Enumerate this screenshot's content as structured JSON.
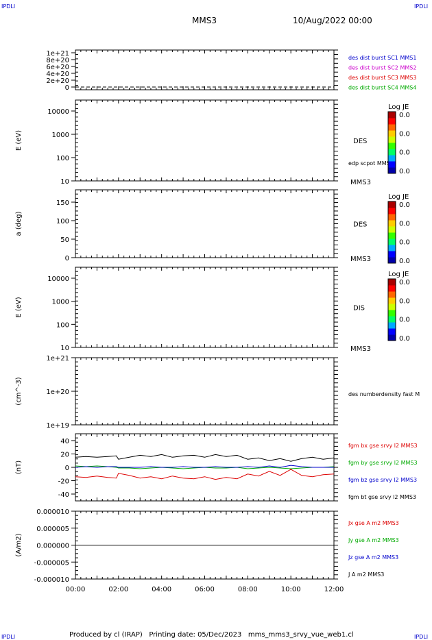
{
  "corner_label": "IPDLI",
  "header": {
    "spacecraft": "MMS3",
    "date": "10/Aug/2022 00:00"
  },
  "footer": "Produced by cl (IRAP)   Printing date: 05/Dec/2023   mms_mms3_srvy_vue_web1.cl",
  "x_axis": {
    "ticks": [
      "00:00",
      "02:00",
      "04:00",
      "06:00",
      "08:00",
      "10:00",
      "12:00"
    ]
  },
  "colorbar": {
    "title": "Log JE",
    "values": [
      "0.0",
      "0.0",
      "0.0",
      "0.0"
    ]
  },
  "colors": {
    "black": "#000000",
    "blue": "#0000cc",
    "magenta": "#cc00cc",
    "red": "#dd0000",
    "green": "#00aa00"
  },
  "chart_data": [
    {
      "type": "line",
      "ylabel": "",
      "yticks": [
        "1e+21",
        "8e+20",
        "6e+20",
        "4e+20",
        "2e+20",
        "0"
      ],
      "ylim": [
        0,
        1e+21
      ],
      "series": [
        {
          "name": "des dist burst SC1 MMS1",
          "color": "#0000cc"
        },
        {
          "name": "des dist burst SC2 MMS2",
          "color": "#cc00cc"
        },
        {
          "name": "des dist burst SC3 MMS3",
          "color": "#dd0000"
        },
        {
          "name": "des dist burst SC4 MMS4",
          "color": "#00aa00"
        }
      ]
    },
    {
      "type": "heatmap",
      "ylabel": "E (eV)",
      "scale": "log",
      "yticks": [
        "10000",
        "1000",
        "100",
        "10"
      ],
      "ylim": [
        10,
        15000
      ],
      "species": "DES",
      "spacecraft": "MMS3",
      "overlay": "edp scpot MMS3"
    },
    {
      "type": "heatmap",
      "ylabel": "a (deg)",
      "yticks": [
        "150",
        "100",
        "50",
        "0"
      ],
      "ylim": [
        0,
        180
      ],
      "species": "DES",
      "spacecraft": "MMS3"
    },
    {
      "type": "heatmap",
      "ylabel": "E (eV)",
      "scale": "log",
      "yticks": [
        "10000",
        "1000",
        "100",
        "10"
      ],
      "ylim": [
        10,
        15000
      ],
      "species": "DIS",
      "spacecraft": "MMS3"
    },
    {
      "type": "line",
      "ylabel": "(cm^-3)",
      "scale": "log",
      "yticks": [
        "1e+21",
        "1e+20",
        "1e+19"
      ],
      "ylim": [
        1e+19,
        1e+21
      ],
      "series": [
        {
          "name": "des numberdensity fast M",
          "color": "#000000"
        }
      ]
    },
    {
      "type": "line",
      "ylabel": "(nT)",
      "yticks": [
        "40",
        "20",
        "0",
        "-20",
        "-40"
      ],
      "ylim": [
        -50,
        50
      ],
      "x": [
        0,
        0.5,
        1,
        1.5,
        1.9,
        2.0,
        2.5,
        3,
        3.5,
        4,
        4.5,
        5,
        5.5,
        6,
        6.5,
        7,
        7.5,
        8,
        8.5,
        9,
        9.5,
        10,
        10.5,
        11,
        11.5,
        12
      ],
      "series": [
        {
          "name": "fgm bx gse srvy l2 MMS3",
          "color": "#dd0000",
          "values": [
            -14,
            -15,
            -13,
            -15,
            -16,
            -9,
            -12,
            -16,
            -14,
            -17,
            -13,
            -16,
            -17,
            -14,
            -18,
            -15,
            -17,
            -10,
            -13,
            -6,
            -12,
            -3,
            -12,
            -14,
            -11,
            -10
          ]
        },
        {
          "name": "fgm by gse srvy l2 MMS3",
          "color": "#00aa00",
          "values": [
            2,
            1,
            2,
            1,
            0,
            -1,
            -1,
            -2,
            -1,
            0,
            -1,
            -2,
            -1,
            0,
            -1,
            -1,
            0,
            -2,
            -1,
            0,
            -1,
            -2,
            -1,
            0,
            0,
            1
          ]
        },
        {
          "name": "fgm bz gse srvy l2 MMS3",
          "color": "#0000cc",
          "values": [
            0,
            1,
            0,
            1,
            1,
            0,
            0,
            0,
            1,
            0,
            0,
            1,
            0,
            0,
            1,
            0,
            0,
            1,
            0,
            2,
            0,
            3,
            1,
            0,
            0,
            0
          ]
        },
        {
          "name": "fgm bt gse srvy l2 MMS3",
          "color": "#000000",
          "values": [
            15,
            16,
            15,
            16,
            17,
            12,
            15,
            18,
            16,
            19,
            15,
            17,
            18,
            15,
            19,
            16,
            18,
            12,
            14,
            10,
            13,
            9,
            13,
            15,
            12,
            14
          ]
        }
      ]
    },
    {
      "type": "line",
      "ylabel": "(A/m2)",
      "yticks": [
        "0.000010",
        "0.000005",
        "0.000000",
        "-0.000005",
        "-0.000010"
      ],
      "ylim": [
        -1e-05,
        1e-05
      ],
      "x": [
        0,
        3,
        6,
        9,
        12
      ],
      "series": [
        {
          "name": "Jx gse A m2 MMS3",
          "color": "#dd0000",
          "values": [
            0,
            0,
            0,
            0,
            0
          ]
        },
        {
          "name": "Jy gse A m2 MMS3",
          "color": "#00aa00",
          "values": [
            0,
            0,
            0,
            0,
            0
          ]
        },
        {
          "name": "Jz gse A m2 MMS3",
          "color": "#0000cc",
          "values": [
            0,
            0,
            0,
            0,
            0
          ]
        },
        {
          "name": "J A m2 MMS3",
          "color": "#000000",
          "values": [
            0,
            0,
            0,
            0,
            0
          ]
        }
      ]
    }
  ]
}
